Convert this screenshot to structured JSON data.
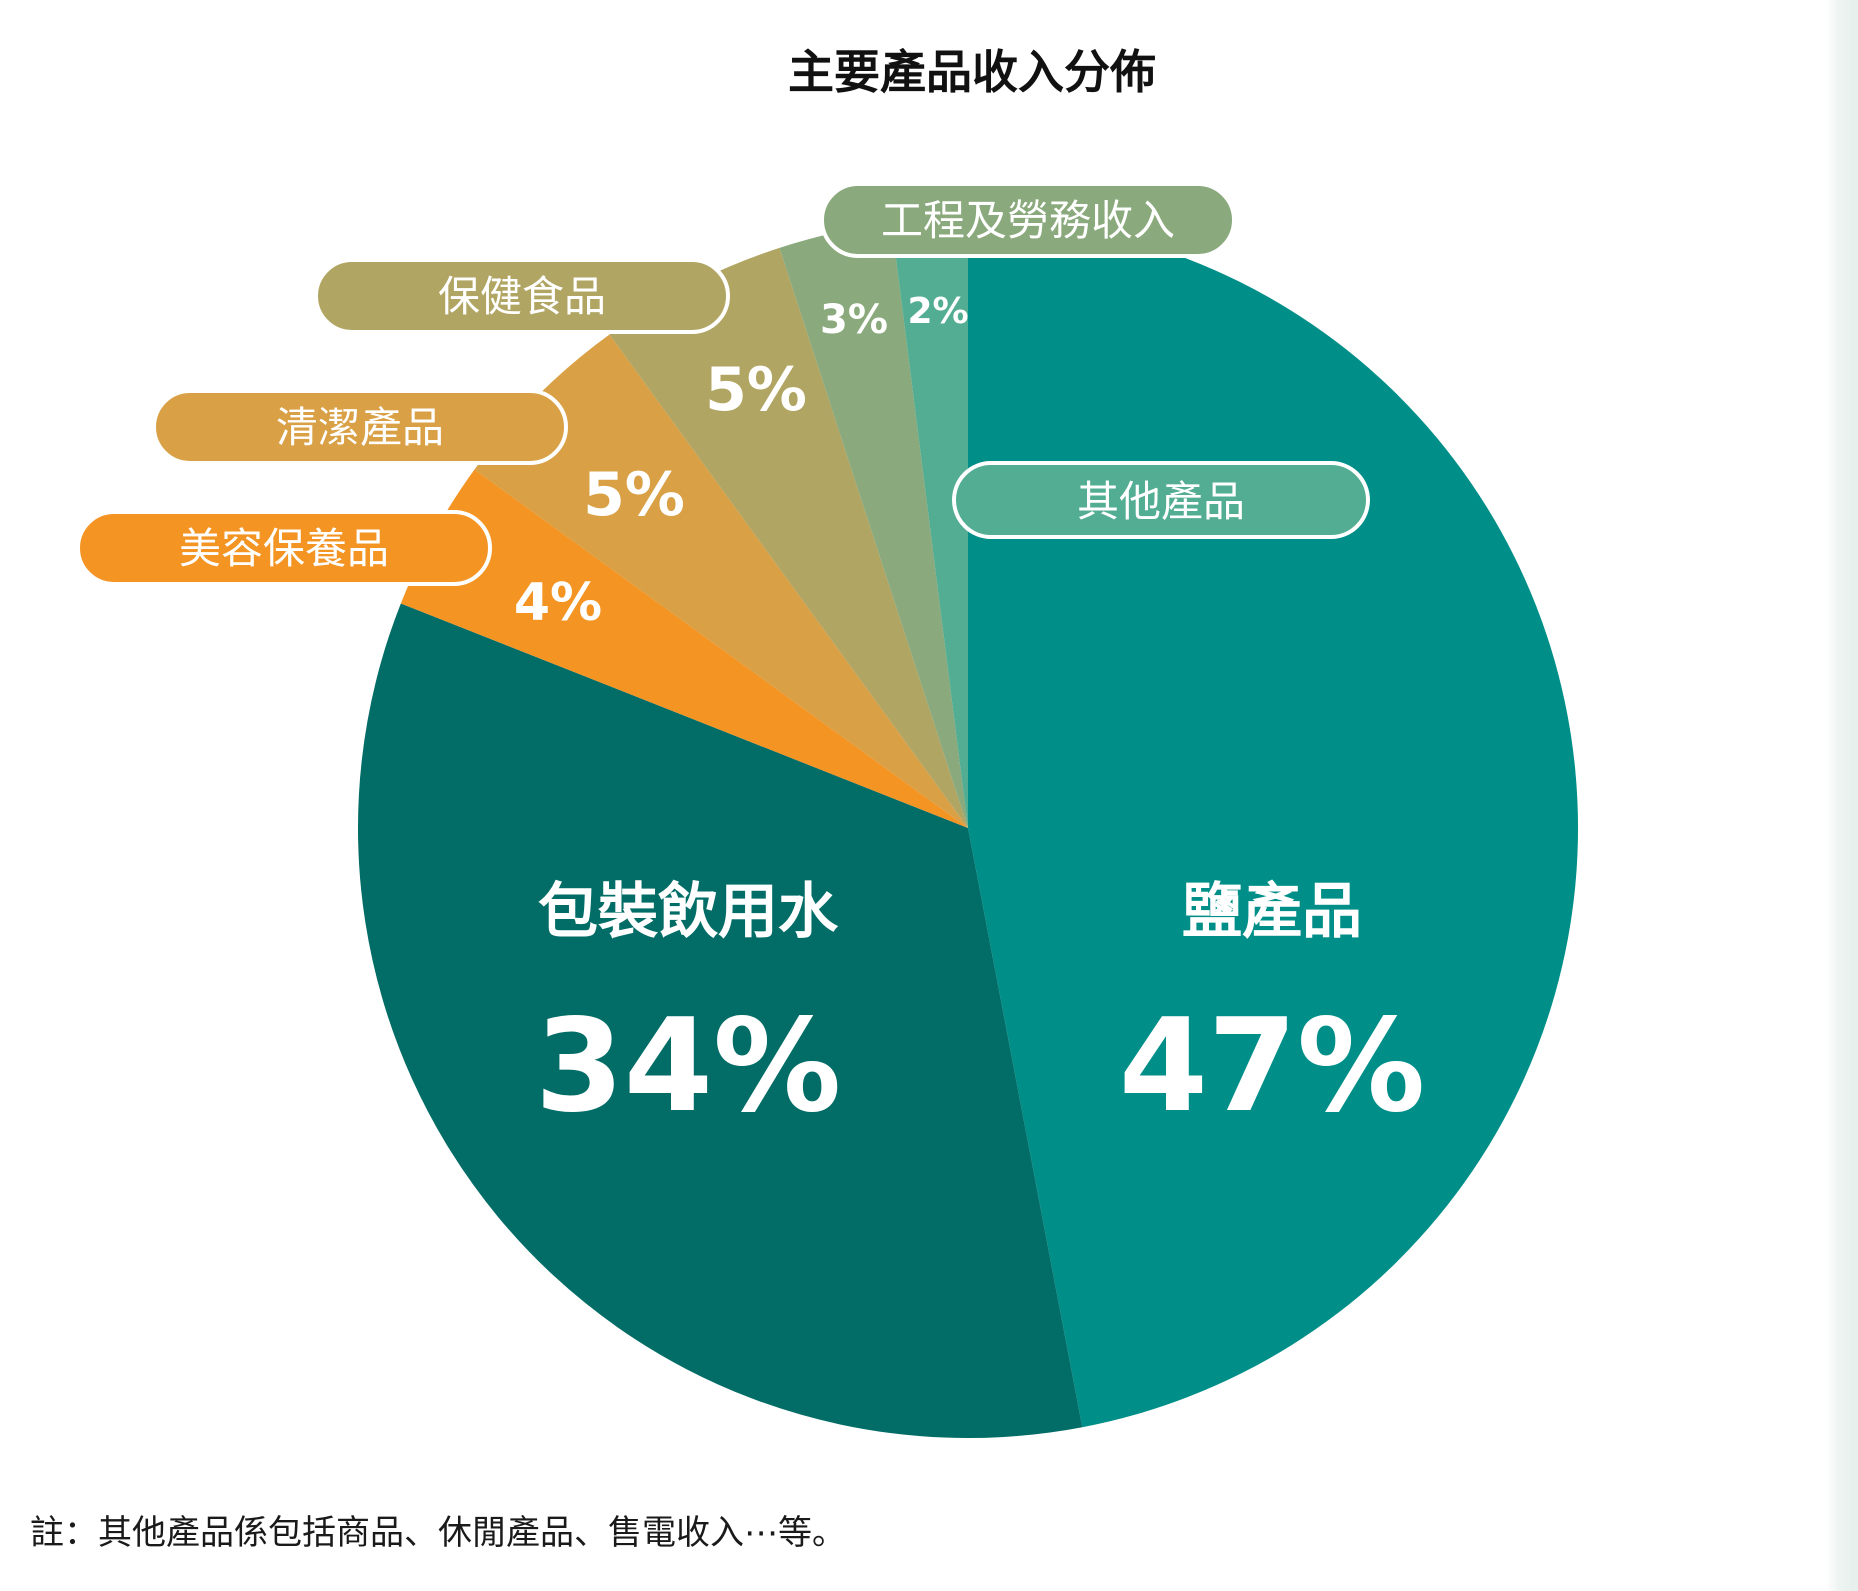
{
  "chart_data": {
    "type": "pie",
    "title": "主要產品收入分佈",
    "slices": [
      {
        "label": "鹽產品",
        "value": 47,
        "value_label": "47%",
        "color": "#008f88"
      },
      {
        "label": "包裝飲用水",
        "value": 34,
        "value_label": "34%",
        "color": "#026c66"
      },
      {
        "label": "美容保養品",
        "value": 4,
        "value_label": "4%",
        "color": "#f39423"
      },
      {
        "label": "清潔產品",
        "value": 5,
        "value_label": "5%",
        "color": "#d9a045"
      },
      {
        "label": "保健食品",
        "value": 5,
        "value_label": "5%",
        "color": "#b1a563"
      },
      {
        "label": "工程及勞務收入",
        "value": 3,
        "value_label": "3%",
        "color": "#8aa97c"
      },
      {
        "label": "其他產品",
        "value": 2,
        "value_label": "2%",
        "color": "#52ad92"
      }
    ],
    "start": "top",
    "direction": "clockwise"
  },
  "footnote": "註：其他產品係包括商品、休閒產品、售電收入⋯等。"
}
